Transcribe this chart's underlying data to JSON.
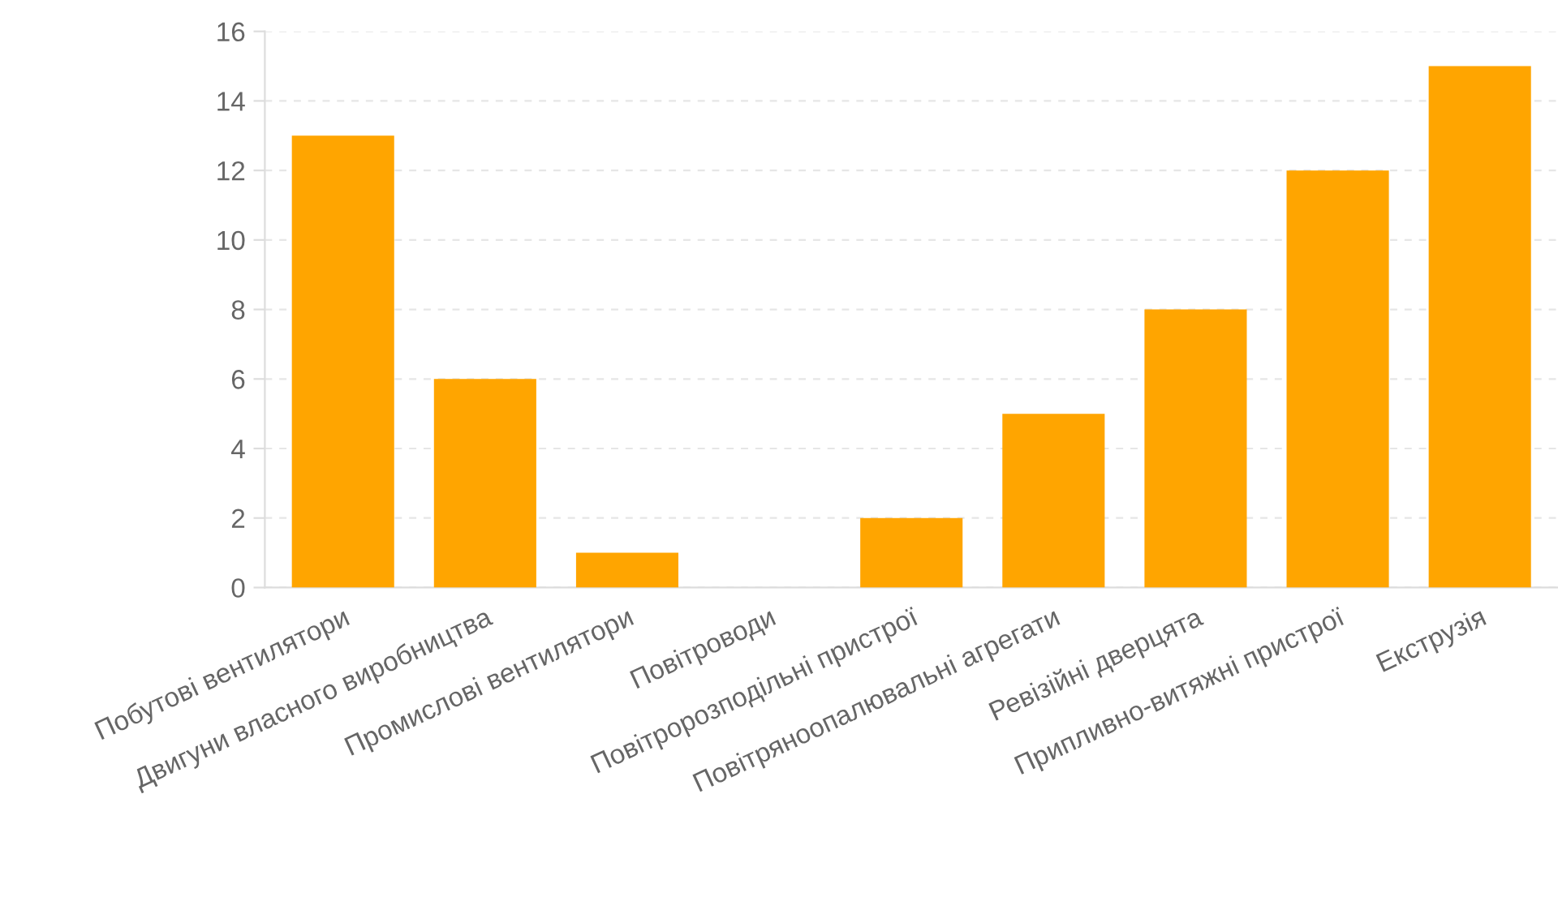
{
  "chart_data": {
    "type": "bar",
    "categories": [
      "Побутові вентилятори",
      "Двигуни власного виробництва",
      "Промислові вентилятори",
      "Повітроводи",
      "Повітророзподільні пристрої",
      "Повітряноопалювальні агрегати",
      "Ревізійні дверцята",
      "Припливно-витяжні пристрої",
      "Екструзія"
    ],
    "values": [
      13,
      6,
      1,
      0,
      2,
      5,
      8,
      12,
      15
    ],
    "color": "#ffa500",
    "ylim": [
      0,
      16
    ],
    "yticks": [
      0,
      2,
      4,
      6,
      8,
      10,
      12,
      14,
      16
    ],
    "grid": "y"
  }
}
